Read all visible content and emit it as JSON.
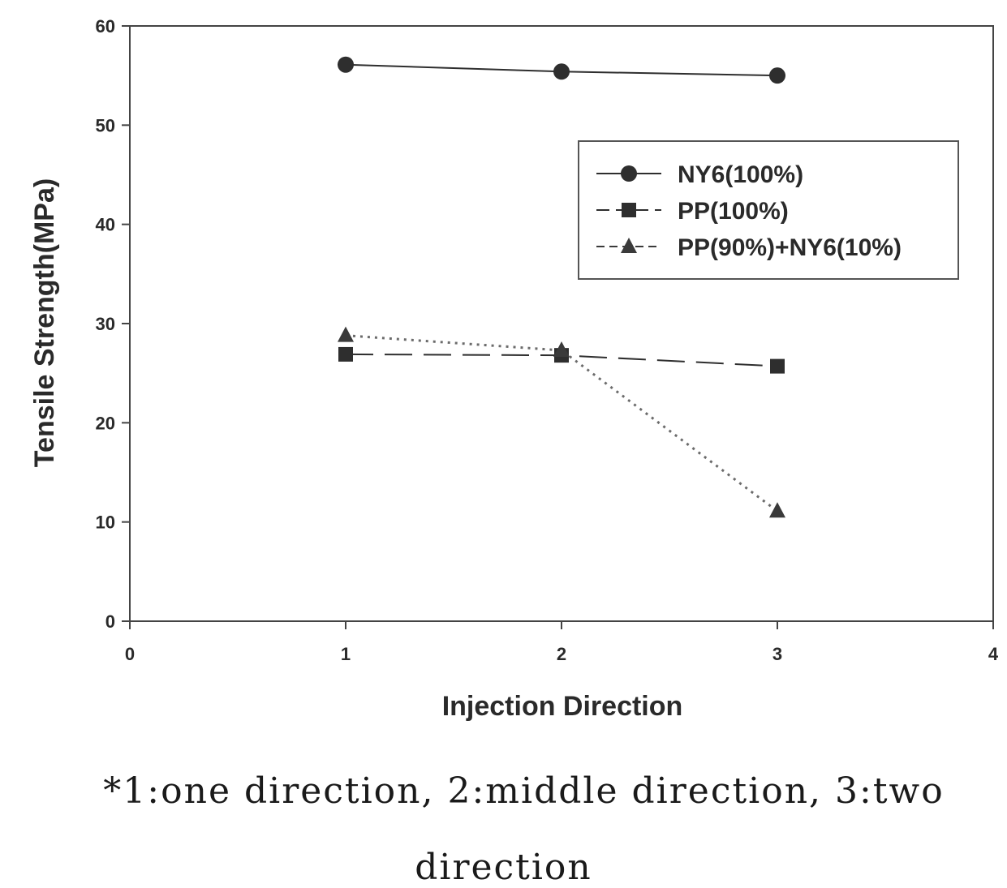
{
  "chart_data": {
    "type": "line",
    "title": "",
    "xlabel": "Injection Direction",
    "ylabel": "Tensile Strength(MPa)",
    "xlim": [
      0,
      4
    ],
    "ylim": [
      0,
      60
    ],
    "x_ticks": [
      "0",
      "1",
      "2",
      "3",
      "4"
    ],
    "y_ticks": [
      "0",
      "10",
      "20",
      "30",
      "40",
      "50",
      "60"
    ],
    "grid": false,
    "legend_position": "upper-right",
    "x": [
      1,
      2,
      3
    ],
    "series": [
      {
        "name": "NY6(100%)",
        "marker": "circle",
        "line": "solid",
        "color": "#2e2e2e",
        "values": [
          56.1,
          55.4,
          55.0
        ]
      },
      {
        "name": "PP(100%)",
        "marker": "square",
        "line": "dashed",
        "color": "#2e2e2e",
        "values": [
          26.9,
          26.8,
          25.7
        ]
      },
      {
        "name": "PP(90%)+NY6(10%)",
        "marker": "triangle",
        "line": "dotted",
        "color": "#3a3a3a",
        "values": [
          28.8,
          27.3,
          11.1
        ]
      }
    ]
  },
  "note": {
    "line1": "*1:one direction, 2:middle direction, 3:two",
    "line2": "direction"
  }
}
